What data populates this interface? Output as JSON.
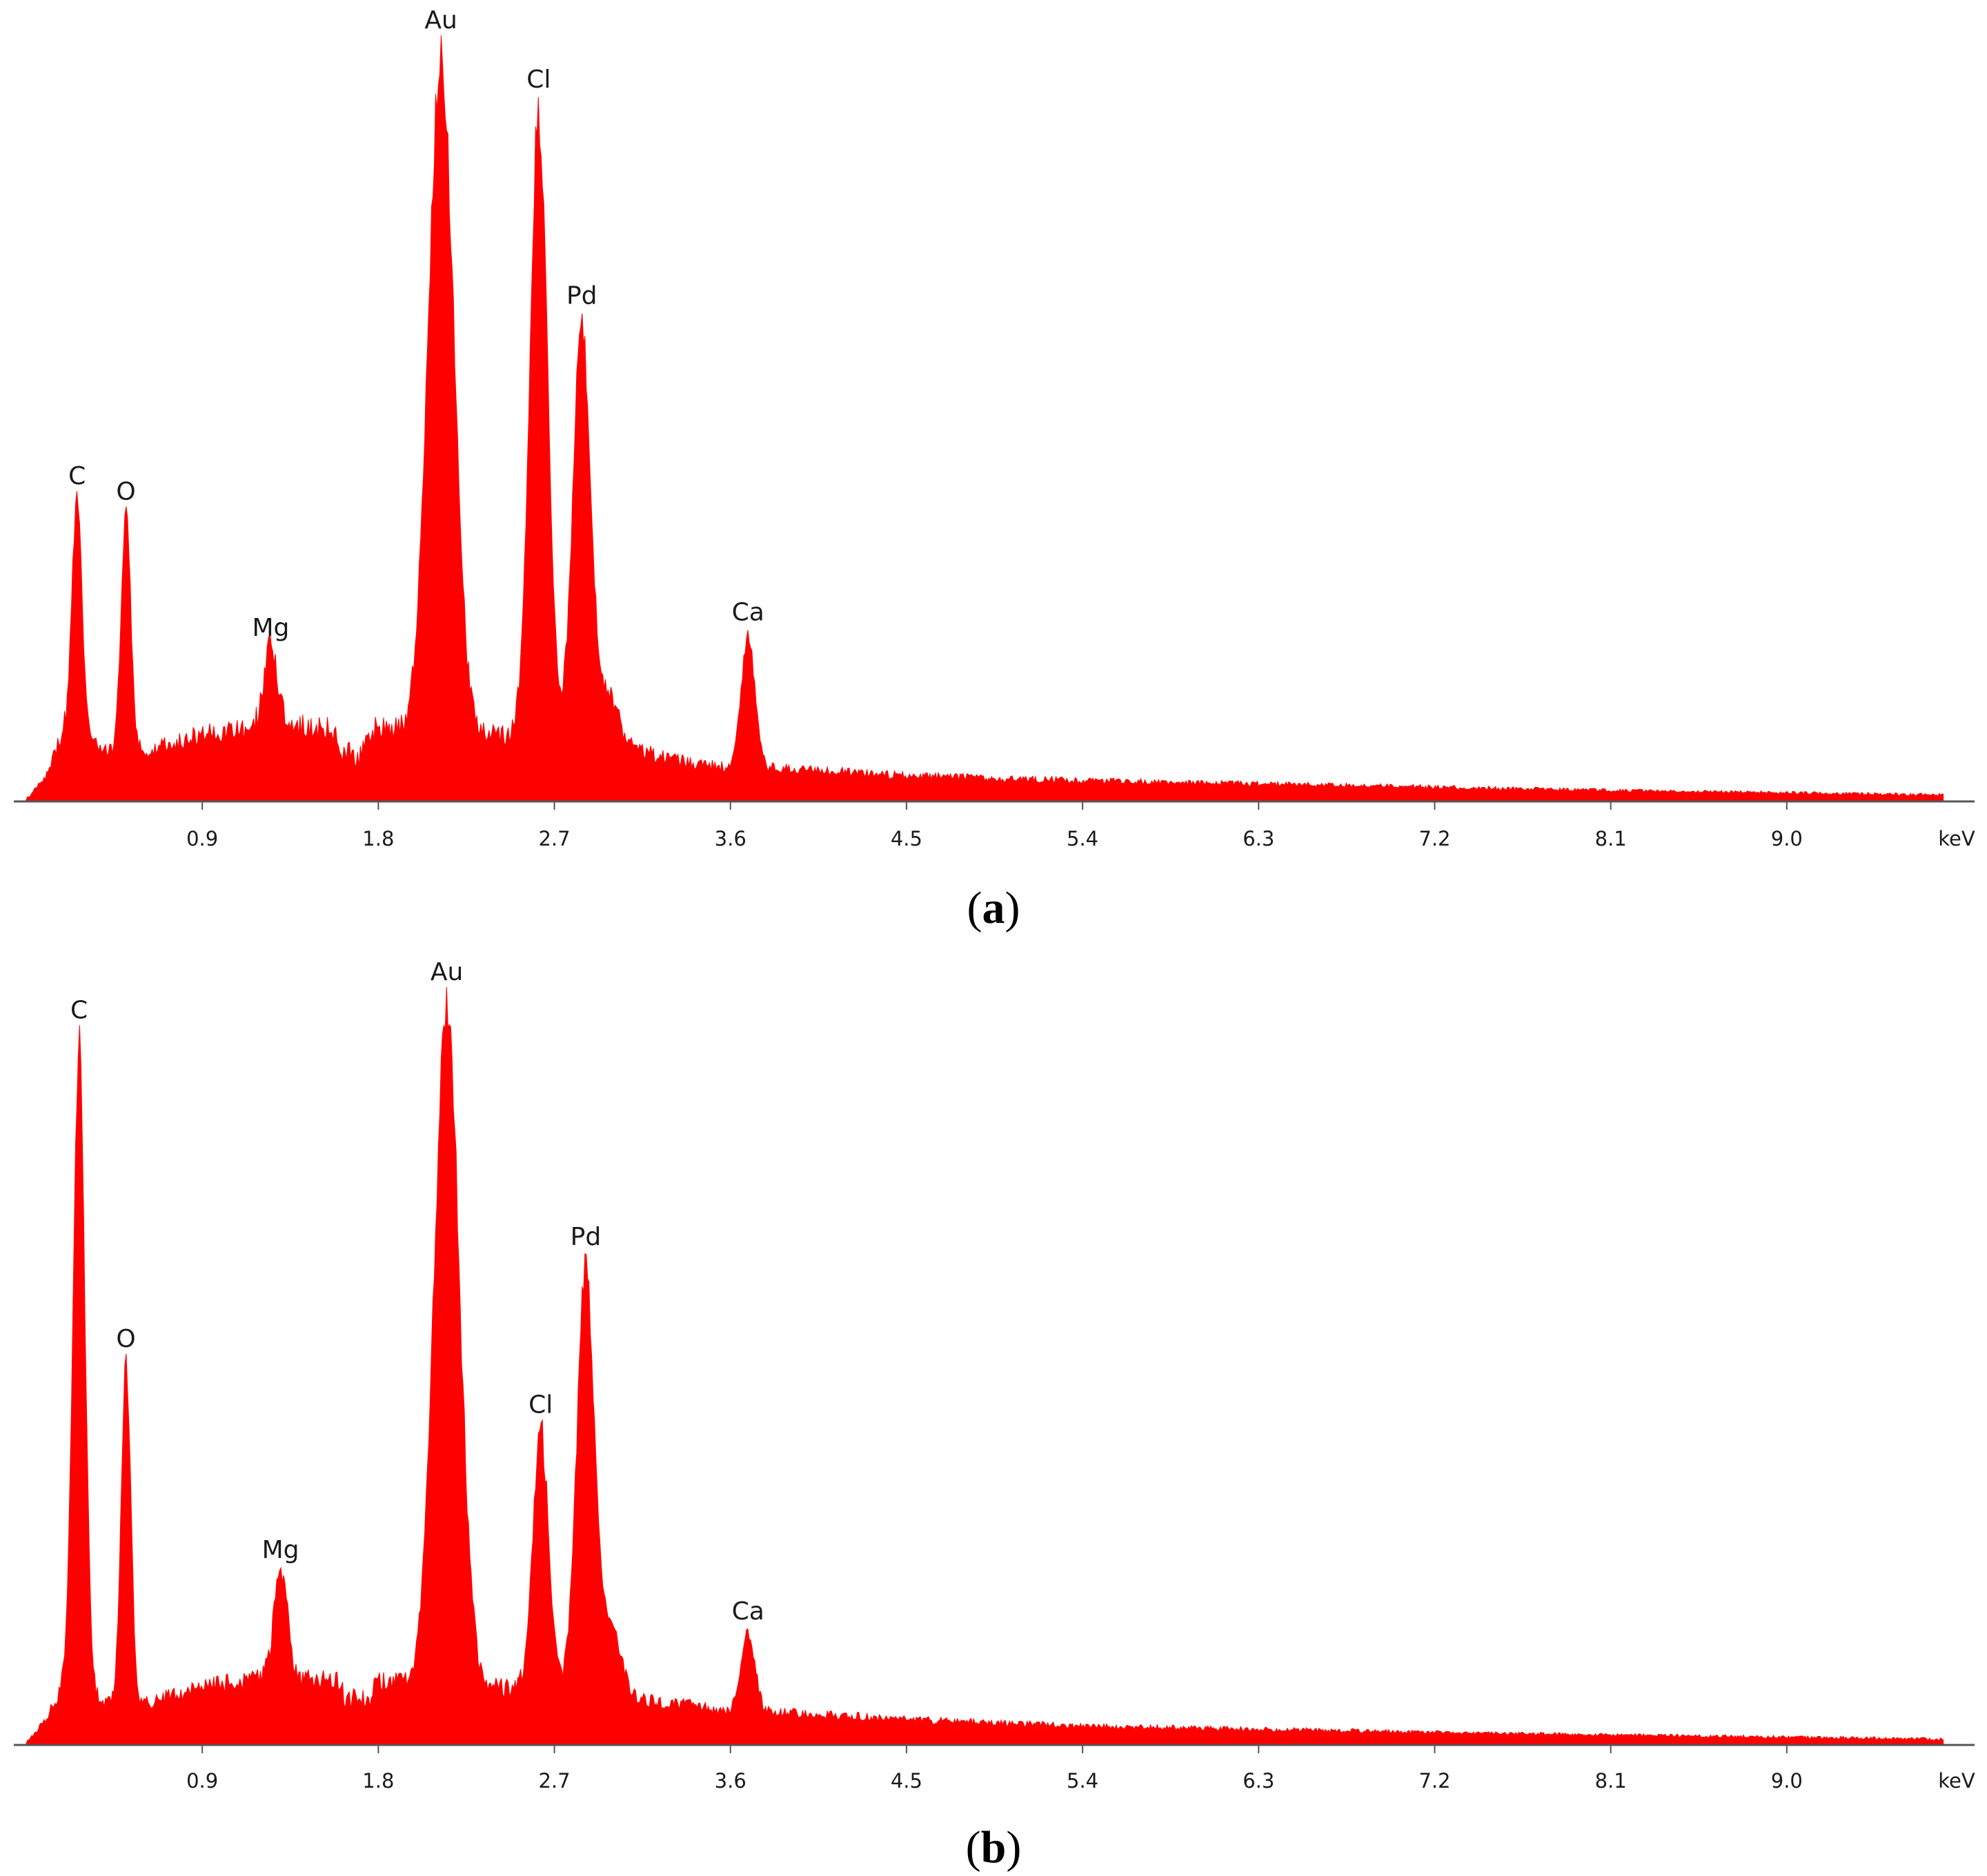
{
  "colors": {
    "spectrum": "#ff0000",
    "axis": "#555555",
    "text": "#1a1a1a"
  },
  "chart_data": [
    {
      "type": "area",
      "panel_label": "(a)",
      "panel_letter": "a",
      "xlabel": "keV",
      "x_ticks": [
        "0.9",
        "1.8",
        "2.7",
        "3.6",
        "4.5",
        "5.4",
        "6.3",
        "7.2",
        "8.1",
        "9.0"
      ],
      "xlim": [
        0.0,
        9.9
      ],
      "ylim": [
        0,
        100
      ],
      "background": [
        [
          0.0,
          0
        ],
        [
          0.1,
          3
        ],
        [
          0.2,
          9
        ],
        [
          0.4,
          6
        ],
        [
          0.6,
          6
        ],
        [
          0.9,
          8
        ],
        [
          1.2,
          9
        ],
        [
          1.5,
          9
        ],
        [
          1.8,
          9
        ],
        [
          2.1,
          8
        ],
        [
          2.5,
          8
        ],
        [
          2.7,
          8
        ],
        [
          3.0,
          7
        ],
        [
          3.3,
          5
        ],
        [
          3.6,
          4
        ],
        [
          3.8,
          4
        ],
        [
          4.5,
          3
        ],
        [
          5.4,
          2.4
        ],
        [
          6.3,
          2
        ],
        [
          7.2,
          1.6
        ],
        [
          8.1,
          1.2
        ],
        [
          9.0,
          0.9
        ],
        [
          9.8,
          0.6
        ]
      ],
      "peaks": [
        {
          "label": "C",
          "x": 0.26,
          "y": 40,
          "width": 0.025
        },
        {
          "label": "O",
          "x": 0.51,
          "y": 38,
          "width": 0.025
        },
        {
          "label": "Mg",
          "x": 1.25,
          "y": 20,
          "width": 0.035
        },
        {
          "label": "Au",
          "x": 2.12,
          "y": 99,
          "width": 0.065
        },
        {
          "label": "Cl",
          "x": 2.62,
          "y": 91,
          "width": 0.045
        },
        {
          "label": "Pd",
          "x": 2.84,
          "y": 63,
          "width": 0.045
        },
        {
          "label": "Ca",
          "x": 3.69,
          "y": 22,
          "width": 0.035
        }
      ],
      "minor_peaks": [
        {
          "x": 1.62,
          "y": 6,
          "width": 0.03
        },
        {
          "x": 1.7,
          "y": 5,
          "width": 0.03
        },
        {
          "x": 2.97,
          "y": 13,
          "width": 0.05
        },
        {
          "x": 3.01,
          "y": 8,
          "width": 0.03
        }
      ]
    },
    {
      "type": "area",
      "panel_label": "(b)",
      "panel_letter": "b",
      "xlabel": "keV",
      "x_ticks": [
        "0.9",
        "1.8",
        "2.7",
        "3.6",
        "4.5",
        "5.4",
        "6.3",
        "7.2",
        "8.1",
        "9.0"
      ],
      "xlim": [
        0.0,
        9.9
      ],
      "ylim": [
        0,
        100
      ],
      "background": [
        [
          0.0,
          0
        ],
        [
          0.1,
          3
        ],
        [
          0.2,
          8
        ],
        [
          0.4,
          5
        ],
        [
          0.6,
          5
        ],
        [
          0.9,
          7
        ],
        [
          1.2,
          8
        ],
        [
          1.5,
          8
        ],
        [
          1.8,
          8
        ],
        [
          2.1,
          7
        ],
        [
          2.5,
          7
        ],
        [
          2.7,
          7
        ],
        [
          3.0,
          6
        ],
        [
          3.3,
          5
        ],
        [
          3.6,
          4
        ],
        [
          3.8,
          4
        ],
        [
          4.5,
          3
        ],
        [
          5.4,
          2.2
        ],
        [
          6.3,
          1.8
        ],
        [
          7.2,
          1.4
        ],
        [
          8.1,
          1.1
        ],
        [
          9.0,
          0.8
        ],
        [
          9.8,
          0.5
        ]
      ],
      "peaks": [
        {
          "label": "C",
          "x": 0.27,
          "y": 94,
          "width": 0.03
        },
        {
          "label": "O",
          "x": 0.51,
          "y": 51,
          "width": 0.025
        },
        {
          "label": "Mg",
          "x": 1.3,
          "y": 23,
          "width": 0.035
        },
        {
          "label": "Au",
          "x": 2.15,
          "y": 99,
          "width": 0.065
        },
        {
          "label": "Cl",
          "x": 2.63,
          "y": 42,
          "width": 0.04
        },
        {
          "label": "Pd",
          "x": 2.86,
          "y": 64,
          "width": 0.045
        },
        {
          "label": "Ca",
          "x": 3.69,
          "y": 15,
          "width": 0.035
        }
      ],
      "minor_peaks": [
        {
          "x": 1.65,
          "y": 5,
          "width": 0.03
        },
        {
          "x": 1.74,
          "y": 5,
          "width": 0.03
        },
        {
          "x": 2.99,
          "y": 15,
          "width": 0.05
        },
        {
          "x": 3.37,
          "y": 5,
          "width": 0.025
        }
      ]
    }
  ]
}
